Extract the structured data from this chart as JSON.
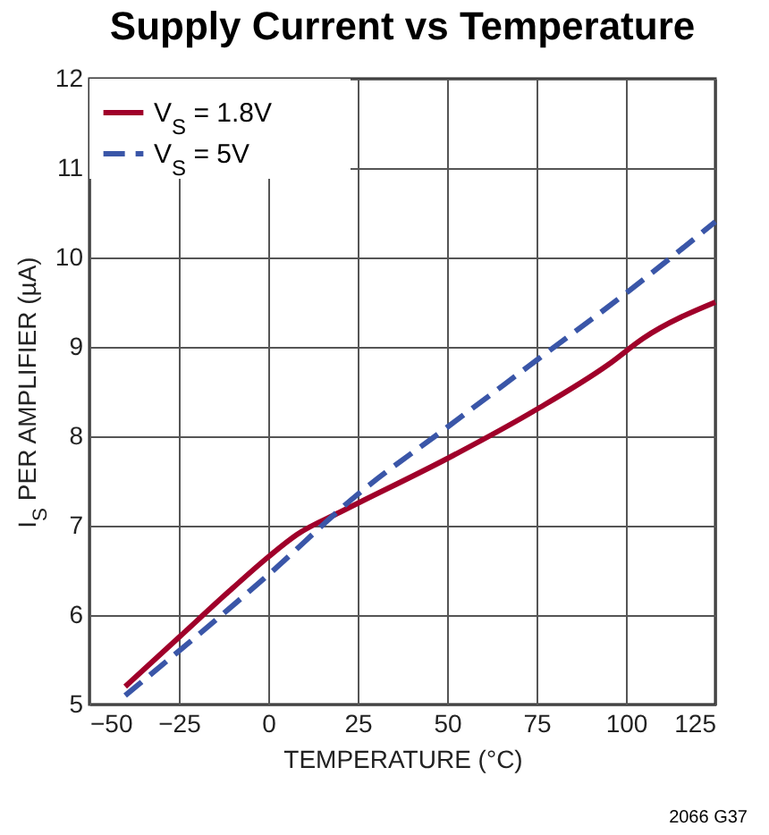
{
  "chart_data": {
    "type": "line",
    "title": "Supply Current vs Temperature",
    "xlabel": "TEMPERATURE (°C)",
    "ylabel": "I$_{S}$ PER AMPLIFIER (µA)",
    "series": [
      {
        "name": "V$_{S}$ = 1.8V",
        "color": "#a0002a",
        "line_style": "solid",
        "x": [
          -40,
          -25,
          -10,
          0,
          8,
          20,
          25,
          50,
          75,
          95,
          105,
          125
        ],
        "values": [
          5.2,
          5.75,
          6.3,
          6.65,
          6.9,
          7.15,
          7.25,
          7.75,
          8.3,
          8.8,
          9.1,
          9.5
        ]
      },
      {
        "name": "V$_{S}$ = 5V",
        "color": "#3a56a8",
        "line_style": "dashed",
        "x": [
          -40,
          0,
          25,
          50,
          75,
          100,
          125
        ],
        "values": [
          5.1,
          6.45,
          7.35,
          8.1,
          8.85,
          9.6,
          10.4
        ]
      }
    ],
    "xlim": [
      -50,
      125
    ],
    "xticks": [
      -50,
      -25,
      0,
      25,
      50,
      75,
      100,
      125
    ],
    "ylim": [
      5,
      12
    ],
    "yticks": [
      5,
      6,
      7,
      8,
      9,
      10,
      11,
      12
    ],
    "grid": true,
    "legend": "top left",
    "annotations": [
      "2066 G37"
    ]
  }
}
